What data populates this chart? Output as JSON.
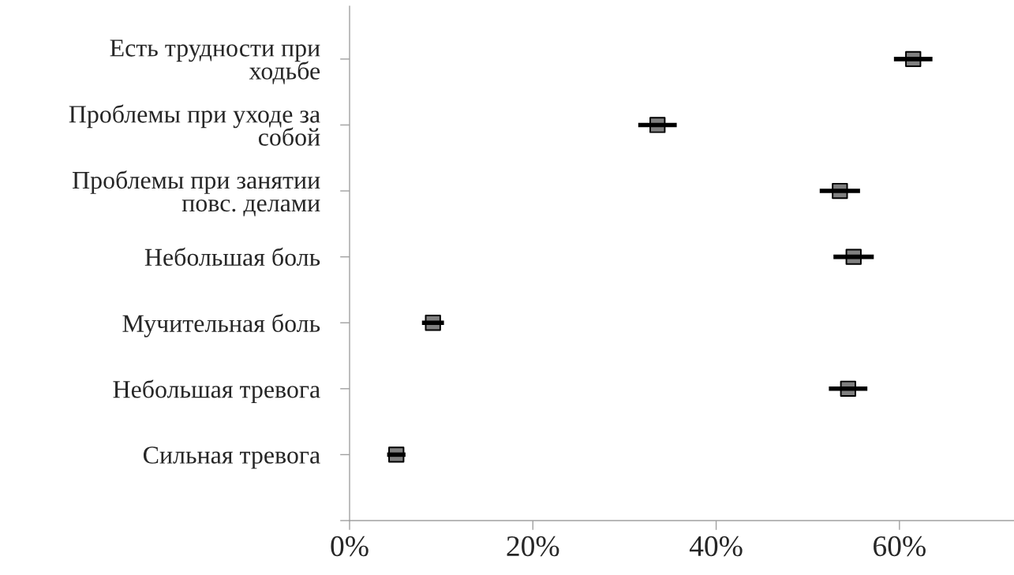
{
  "chart_data": {
    "type": "scatter",
    "orientation": "horizontal",
    "categories": [
      "Есть трудности при\nходьбе",
      "Проблемы при уходе за\nсобой",
      "Проблемы при занятии\nповс. делами",
      "Небольшая боль",
      "Мучительная боль",
      "Небольшая тревога",
      "Сильная тревога"
    ],
    "values": [
      61.5,
      33.6,
      53.5,
      55.0,
      9.1,
      54.4,
      5.1
    ],
    "errors": [
      2.1,
      2.1,
      2.2,
      2.2,
      1.2,
      2.1,
      1.0
    ],
    "color": "#808080",
    "marker": "square",
    "xlim": [
      0,
      72.5
    ],
    "xticks": [
      {
        "value": 0,
        "label": "0%"
      },
      {
        "value": 20,
        "label": "20%"
      },
      {
        "value": 40,
        "label": "40%"
      },
      {
        "value": 60,
        "label": "60%"
      }
    ]
  }
}
